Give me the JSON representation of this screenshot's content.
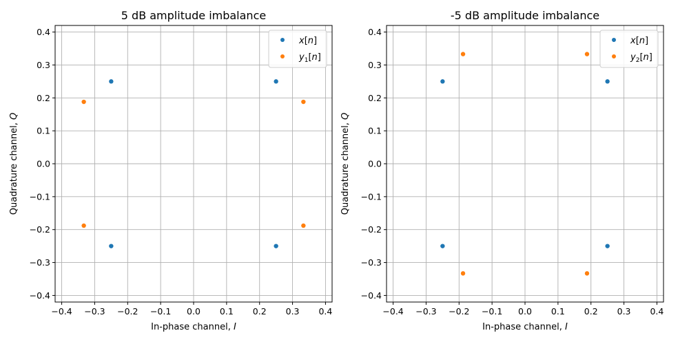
{
  "chart_data": [
    {
      "type": "scatter",
      "title": "5 dB amplitude imbalance",
      "xlabel": "In-phase channel, I",
      "ylabel": "Quadrature channel, Q",
      "xlim": [
        -0.42,
        0.42
      ],
      "ylim": [
        -0.42,
        0.42
      ],
      "ticks": [
        -0.4,
        -0.3,
        -0.2,
        -0.1,
        0.0,
        0.1,
        0.2,
        0.3,
        0.4
      ],
      "tick_labels": [
        "−0.4",
        "−0.3",
        "−0.2",
        "−0.1",
        "0.0",
        "0.1",
        "0.2",
        "0.3",
        "0.4"
      ],
      "grid": true,
      "legend_position": "top-right",
      "series": [
        {
          "name": "x[n]",
          "color": "#1f77b4",
          "points": [
            [
              -0.25,
              0.25
            ],
            [
              0.25,
              0.25
            ],
            [
              -0.25,
              -0.25
            ],
            [
              0.25,
              -0.25
            ]
          ]
        },
        {
          "name": "y1[n]",
          "color": "#ff7f0e",
          "points": [
            [
              -0.333,
              0.188
            ],
            [
              0.333,
              0.188
            ],
            [
              -0.333,
              -0.188
            ],
            [
              0.333,
              -0.188
            ]
          ]
        }
      ]
    },
    {
      "type": "scatter",
      "title": "-5 dB amplitude imbalance",
      "xlabel": "In-phase channel, I",
      "ylabel": "Quadrature channel, Q",
      "xlim": [
        -0.42,
        0.42
      ],
      "ylim": [
        -0.42,
        0.42
      ],
      "ticks": [
        -0.4,
        -0.3,
        -0.2,
        -0.1,
        0.0,
        0.1,
        0.2,
        0.3,
        0.4
      ],
      "tick_labels": [
        "−0.4",
        "−0.3",
        "−0.2",
        "−0.1",
        "0.0",
        "0.1",
        "0.2",
        "0.3",
        "0.4"
      ],
      "grid": true,
      "legend_position": "top-right",
      "series": [
        {
          "name": "x[n]",
          "color": "#1f77b4",
          "points": [
            [
              -0.25,
              0.25
            ],
            [
              0.25,
              0.25
            ],
            [
              -0.25,
              -0.25
            ],
            [
              0.25,
              -0.25
            ]
          ]
        },
        {
          "name": "y2[n]",
          "color": "#ff7f0e",
          "points": [
            [
              -0.188,
              0.333
            ],
            [
              0.188,
              0.333
            ],
            [
              -0.188,
              -0.333
            ],
            [
              0.188,
              -0.333
            ]
          ]
        }
      ]
    }
  ]
}
